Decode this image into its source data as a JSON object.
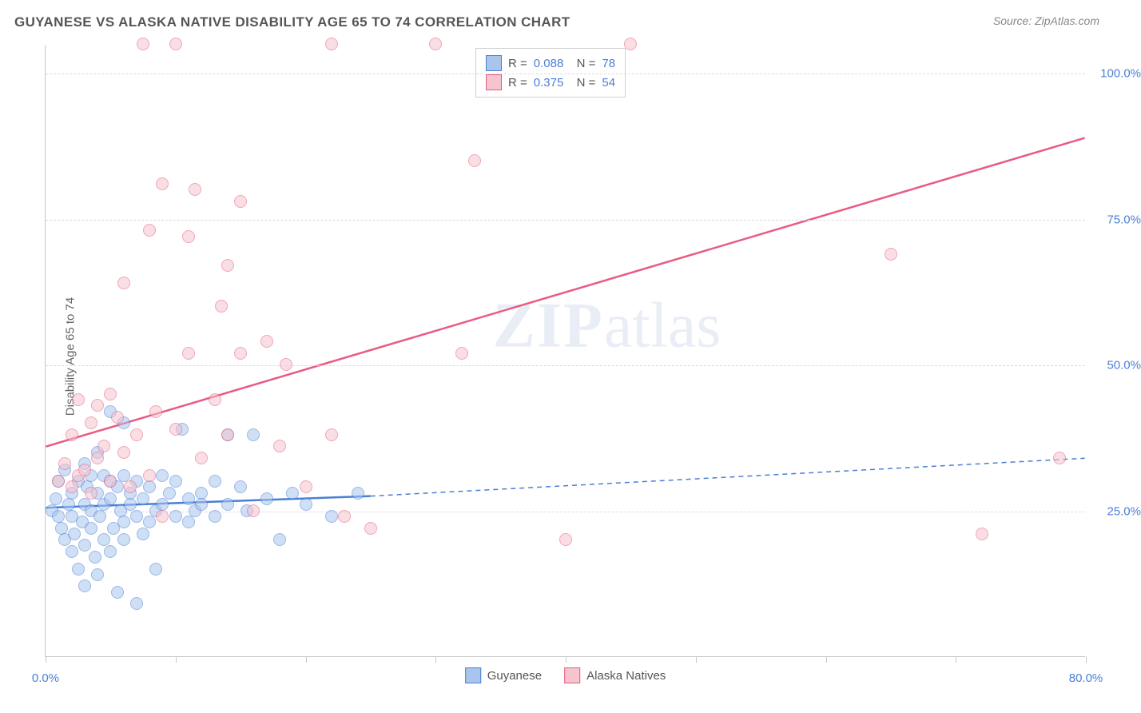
{
  "header": {
    "title": "GUYANESE VS ALASKA NATIVE DISABILITY AGE 65 TO 74 CORRELATION CHART",
    "source": "Source: ZipAtlas.com"
  },
  "chart": {
    "type": "scatter",
    "ylabel": "Disability Age 65 to 74",
    "xlim": [
      0,
      80
    ],
    "ylim": [
      0,
      105
    ],
    "xtick_positions": [
      0,
      10,
      20,
      30,
      40,
      50,
      60,
      70,
      80
    ],
    "xtick_labels": {
      "0": "0.0%",
      "80": "80.0%"
    },
    "ytick_positions": [
      25,
      50,
      75,
      100
    ],
    "ytick_labels": [
      "25.0%",
      "50.0%",
      "75.0%",
      "100.0%"
    ],
    "background_color": "#ffffff",
    "grid_color": "#dcdcdc",
    "axis_color": "#c8c8c8",
    "label_color": "#666666",
    "tick_label_color": "#4a7fd6",
    "point_radius": 8,
    "point_opacity": 0.55,
    "watermark": "ZIPatlas",
    "series": [
      {
        "name": "Guyanese",
        "fill_color": "#a9c5ed",
        "stroke_color": "#4a7fd6",
        "trend": {
          "x1": 0,
          "y1": 25.5,
          "x2": 25,
          "y2": 27.5,
          "dash_x2": 80,
          "dash_y2": 34,
          "line_width": 2.5
        },
        "legend": {
          "R": "0.088",
          "N": "78"
        },
        "points": [
          [
            0.5,
            25
          ],
          [
            0.8,
            27
          ],
          [
            1,
            24
          ],
          [
            1,
            30
          ],
          [
            1.2,
            22
          ],
          [
            1.5,
            32
          ],
          [
            1.5,
            20
          ],
          [
            1.8,
            26
          ],
          [
            2,
            28
          ],
          [
            2,
            24
          ],
          [
            2,
            18
          ],
          [
            2.2,
            21
          ],
          [
            2.5,
            30
          ],
          [
            2.5,
            15
          ],
          [
            2.8,
            23
          ],
          [
            3,
            33
          ],
          [
            3,
            26
          ],
          [
            3,
            19
          ],
          [
            3,
            12
          ],
          [
            3.2,
            29
          ],
          [
            3.5,
            31
          ],
          [
            3.5,
            22
          ],
          [
            3.5,
            25
          ],
          [
            3.8,
            17
          ],
          [
            4,
            28
          ],
          [
            4,
            35
          ],
          [
            4,
            14
          ],
          [
            4.2,
            24
          ],
          [
            4.5,
            31
          ],
          [
            4.5,
            20
          ],
          [
            4.5,
            26
          ],
          [
            5,
            42
          ],
          [
            5,
            27
          ],
          [
            5,
            30
          ],
          [
            5,
            18
          ],
          [
            5.2,
            22
          ],
          [
            5.5,
            29
          ],
          [
            5.5,
            11
          ],
          [
            5.8,
            25
          ],
          [
            6,
            40
          ],
          [
            6,
            31
          ],
          [
            6,
            23
          ],
          [
            6,
            20
          ],
          [
            6.5,
            26
          ],
          [
            6.5,
            28
          ],
          [
            7,
            30
          ],
          [
            7,
            24
          ],
          [
            7,
            9
          ],
          [
            7.5,
            27
          ],
          [
            7.5,
            21
          ],
          [
            8,
            29
          ],
          [
            8,
            23
          ],
          [
            8.5,
            25
          ],
          [
            8.5,
            15
          ],
          [
            9,
            26
          ],
          [
            9,
            31
          ],
          [
            9.5,
            28
          ],
          [
            10,
            30
          ],
          [
            10,
            24
          ],
          [
            10.5,
            39
          ],
          [
            11,
            27
          ],
          [
            11,
            23
          ],
          [
            11.5,
            25
          ],
          [
            12,
            28
          ],
          [
            12,
            26
          ],
          [
            13,
            30
          ],
          [
            13,
            24
          ],
          [
            14,
            38
          ],
          [
            14,
            26
          ],
          [
            15,
            29
          ],
          [
            15.5,
            25
          ],
          [
            16,
            38
          ],
          [
            17,
            27
          ],
          [
            18,
            20
          ],
          [
            19,
            28
          ],
          [
            20,
            26
          ],
          [
            22,
            24
          ],
          [
            24,
            28
          ]
        ]
      },
      {
        "name": "Alaska Natives",
        "fill_color": "#f5c4ce",
        "stroke_color": "#e95b82",
        "trend": {
          "x1": 0,
          "y1": 36,
          "x2": 80,
          "y2": 89,
          "line_width": 2.5
        },
        "legend": {
          "R": "0.375",
          "N": "54"
        },
        "points": [
          [
            1,
            30
          ],
          [
            1.5,
            33
          ],
          [
            2,
            29
          ],
          [
            2,
            38
          ],
          [
            2.5,
            31
          ],
          [
            2.5,
            44
          ],
          [
            3,
            32
          ],
          [
            3.5,
            40
          ],
          [
            3.5,
            28
          ],
          [
            4,
            34
          ],
          [
            4,
            43
          ],
          [
            4.5,
            36
          ],
          [
            5,
            45
          ],
          [
            5,
            30
          ],
          [
            5.5,
            41
          ],
          [
            6,
            35
          ],
          [
            6,
            64
          ],
          [
            6.5,
            29
          ],
          [
            7,
            38
          ],
          [
            7.5,
            105
          ],
          [
            8,
            73
          ],
          [
            8,
            31
          ],
          [
            8.5,
            42
          ],
          [
            9,
            81
          ],
          [
            9,
            24
          ],
          [
            10,
            105
          ],
          [
            10,
            39
          ],
          [
            11,
            52
          ],
          [
            11,
            72
          ],
          [
            11.5,
            80
          ],
          [
            12,
            34
          ],
          [
            13,
            44
          ],
          [
            13.5,
            60
          ],
          [
            14,
            67
          ],
          [
            14,
            38
          ],
          [
            15,
            78
          ],
          [
            15,
            52
          ],
          [
            16,
            25
          ],
          [
            17,
            54
          ],
          [
            18,
            36
          ],
          [
            18.5,
            50
          ],
          [
            20,
            29
          ],
          [
            22,
            38
          ],
          [
            22,
            105
          ],
          [
            23,
            24
          ],
          [
            25,
            22
          ],
          [
            30,
            105
          ],
          [
            32,
            52
          ],
          [
            33,
            85
          ],
          [
            40,
            20
          ],
          [
            45,
            105
          ],
          [
            65,
            69
          ],
          [
            72,
            21
          ],
          [
            78,
            34
          ]
        ]
      }
    ],
    "legend_bottom": [
      {
        "label": "Guyanese",
        "fill": "#a9c5ed",
        "stroke": "#4a7fd6"
      },
      {
        "label": "Alaska Natives",
        "fill": "#f5c4ce",
        "stroke": "#e95b82"
      }
    ]
  }
}
